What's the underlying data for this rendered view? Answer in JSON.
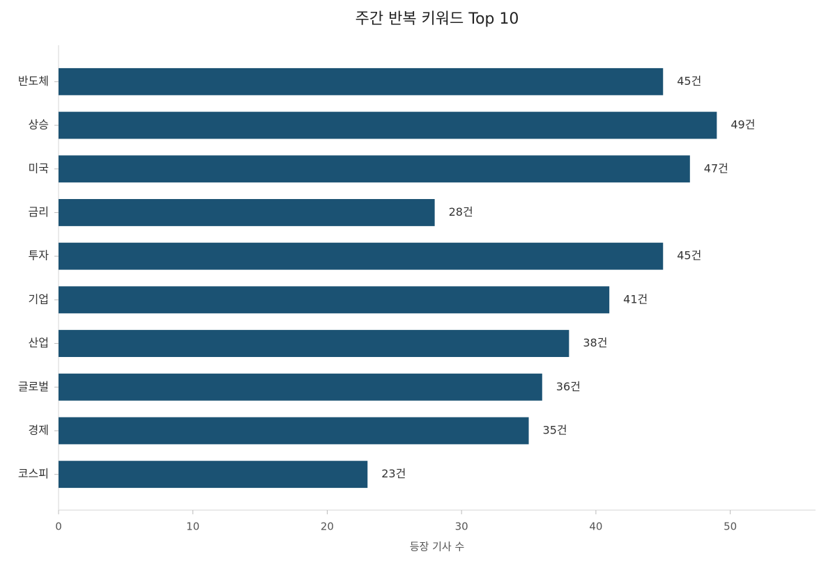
{
  "chart_data": {
    "type": "bar",
    "orientation": "horizontal",
    "title": "주간 반복 키워드 Top 10",
    "x_label": "등장 기사 수",
    "categories": [
      "반도체",
      "상승",
      "미국",
      "금리",
      "투자",
      "기업",
      "산업",
      "글로벌",
      "경제",
      "코스피"
    ],
    "values": [
      45,
      49,
      47,
      28,
      45,
      41,
      38,
      36,
      35,
      23
    ],
    "value_labels": [
      "45건",
      "49건",
      "47건",
      "28건",
      "45건",
      "41건",
      "38건",
      "36건",
      "35건",
      "23건"
    ],
    "color": "#1b5273",
    "xlim": [
      0,
      56.35
    ],
    "xticks": [
      0,
      10,
      20,
      30,
      40,
      50
    ],
    "grid": false
  }
}
